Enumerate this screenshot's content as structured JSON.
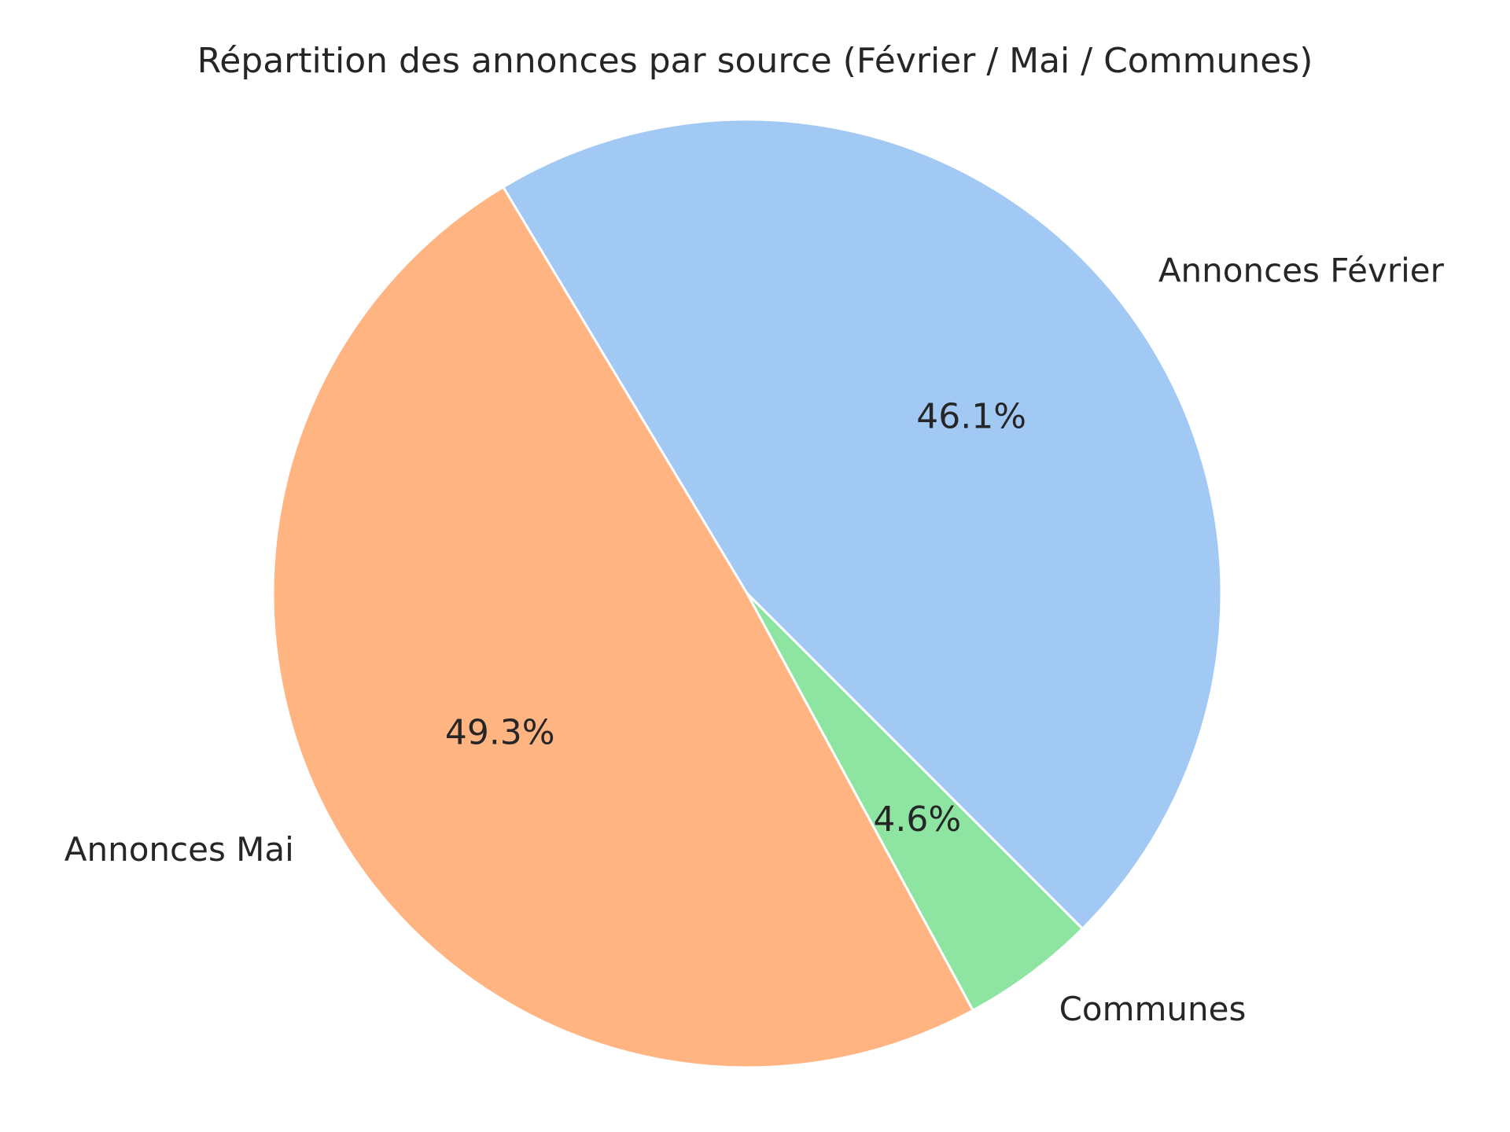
{
  "chart_data": {
    "type": "pie",
    "title": "Répartition des annonces par source (Février / Mai / Communes)",
    "slices": [
      {
        "label": "Annonces Février",
        "value": 46.1,
        "pct_label": "46.1%",
        "color": "#a1c9f4"
      },
      {
        "label": "Annonces Mai",
        "value": 49.3,
        "pct_label": "49.3%",
        "color": "#ffb482"
      },
      {
        "label": "Communes",
        "value": 4.6,
        "pct_label": "4.6%",
        "color": "#8de5a1"
      }
    ],
    "start_angle_deg": -45,
    "direction": "counterclockwise"
  }
}
